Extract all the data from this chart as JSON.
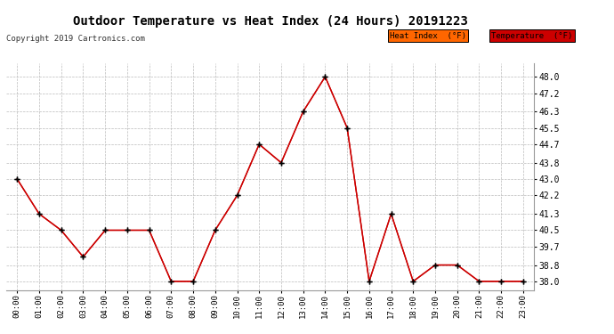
{
  "title": "Outdoor Temperature vs Heat Index (24 Hours) 20191223",
  "copyright": "Copyright 2019 Cartronics.com",
  "hours": [
    "00:00",
    "01:00",
    "02:00",
    "03:00",
    "04:00",
    "05:00",
    "06:00",
    "07:00",
    "08:00",
    "09:00",
    "10:00",
    "11:00",
    "12:00",
    "13:00",
    "14:00",
    "15:00",
    "16:00",
    "17:00",
    "18:00",
    "19:00",
    "20:00",
    "21:00",
    "22:00",
    "23:00"
  ],
  "temperature": [
    43.0,
    41.3,
    40.5,
    39.2,
    40.5,
    40.5,
    40.5,
    38.0,
    38.0,
    40.5,
    42.2,
    44.7,
    43.8,
    46.3,
    48.0,
    45.5,
    38.0,
    41.3,
    38.0,
    38.8,
    38.8,
    38.0,
    38.0,
    38.0
  ],
  "heat_index": [
    43.0,
    41.3,
    40.5,
    39.2,
    40.5,
    40.5,
    40.5,
    38.0,
    38.0,
    40.5,
    42.2,
    44.7,
    43.8,
    46.3,
    48.0,
    45.5,
    38.0,
    41.3,
    38.0,
    38.8,
    38.8,
    38.0,
    38.0,
    38.0
  ],
  "ylim_min": 37.55,
  "ylim_max": 48.65,
  "yticks": [
    38.0,
    38.8,
    39.7,
    40.5,
    41.3,
    42.2,
    43.0,
    43.8,
    44.7,
    45.5,
    46.3,
    47.2,
    48.0
  ],
  "line_color": "#cc0000",
  "marker_color": "#000000",
  "bg_color": "#ffffff",
  "grid_color": "#bbbbbb",
  "legend_heat_bg": "#ff6600",
  "legend_temp_bg": "#cc0000",
  "legend_heat_label": "Heat Index  (°F)",
  "legend_temp_label": "Temperature  (°F)"
}
